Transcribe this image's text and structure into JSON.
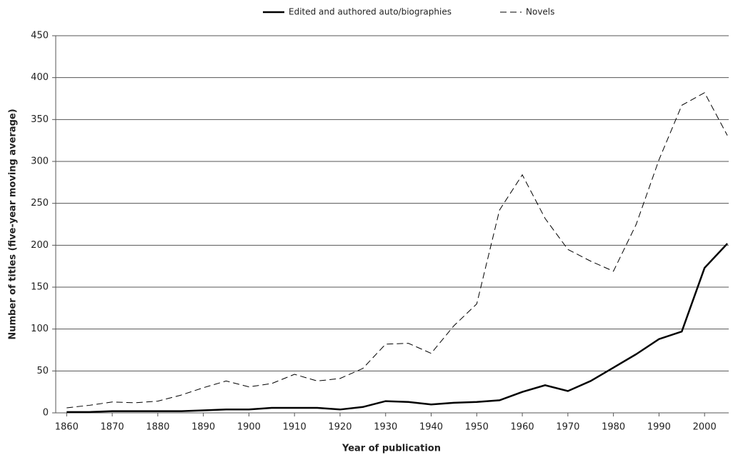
{
  "chart_data": {
    "type": "line",
    "xlabel": "Year of publication",
    "ylabel": "Number of titles (five-year moving average)",
    "x": [
      1860,
      1865,
      1870,
      1875,
      1880,
      1885,
      1890,
      1895,
      1900,
      1905,
      1910,
      1915,
      1920,
      1925,
      1930,
      1935,
      1940,
      1945,
      1950,
      1955,
      1960,
      1965,
      1970,
      1975,
      1980,
      1985,
      1990,
      1995,
      2000,
      2005
    ],
    "series": [
      {
        "name": "Edited and authored auto/biographies",
        "color": "#000000",
        "dash": "solid",
        "values": [
          1,
          1,
          2,
          2,
          2,
          2,
          3,
          4,
          4,
          6,
          6,
          6,
          4,
          7,
          14,
          13,
          10,
          12,
          13,
          15,
          25,
          33,
          26,
          38,
          54,
          70,
          88,
          97,
          173,
          202
        ]
      },
      {
        "name": "Novels",
        "color": "#000000",
        "dash": "dashed",
        "values": [
          6,
          9,
          13,
          12,
          14,
          21,
          30,
          38,
          31,
          35,
          46,
          38,
          41,
          53,
          82,
          83,
          71,
          104,
          130,
          242,
          284,
          232,
          195,
          181,
          169,
          225,
          302,
          367,
          382,
          331
        ]
      }
    ],
    "xlim": [
      1857.6,
      2005.3
    ],
    "xticks": [
      1860,
      1870,
      1880,
      1890,
      1900,
      1910,
      1920,
      1930,
      1940,
      1950,
      1960,
      1970,
      1980,
      1990,
      2000
    ],
    "ylim": [
      0,
      450
    ],
    "yticks": [
      0,
      50,
      100,
      150,
      200,
      250,
      300,
      350,
      400,
      450
    ],
    "grid": true,
    "legend": "top"
  }
}
